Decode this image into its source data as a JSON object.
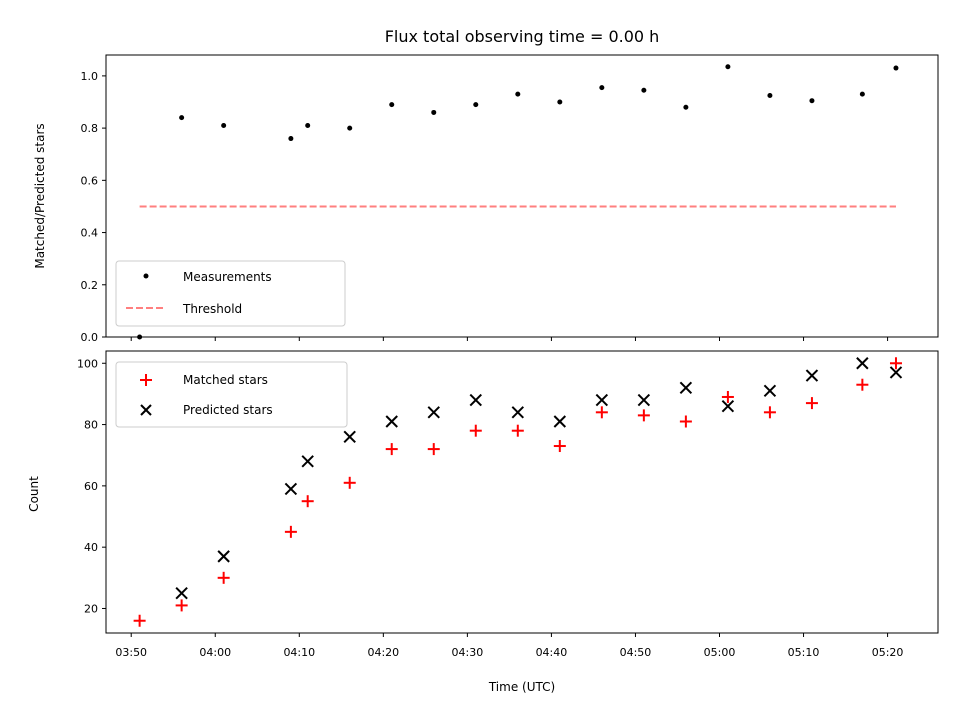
{
  "chart_data": [
    {
      "type": "scatter",
      "title": "Flux total observing time = 0.00 h",
      "xlabel": "",
      "ylabel": "Matched/Predicted stars",
      "ylim": [
        0,
        1.08
      ],
      "yticks": [
        "0.0",
        "0.2",
        "0.4",
        "0.6",
        "0.8",
        "1.0"
      ],
      "xlim": [
        "03:47",
        "05:26"
      ],
      "legend_position": "lower-left",
      "grid": false,
      "series": [
        {
          "name": "Measurements",
          "marker": "dot",
          "color": "#000000",
          "points": [
            [
              "03:51",
              0.0
            ],
            [
              "03:56",
              0.84
            ],
            [
              "04:01",
              0.81
            ],
            [
              "04:09",
              0.76
            ],
            [
              "04:11",
              0.81
            ],
            [
              "04:16",
              0.8
            ],
            [
              "04:21",
              0.89
            ],
            [
              "04:26",
              0.86
            ],
            [
              "04:31",
              0.89
            ],
            [
              "04:36",
              0.93
            ],
            [
              "04:41",
              0.9
            ],
            [
              "04:46",
              0.955
            ],
            [
              "04:51",
              0.945
            ],
            [
              "04:56",
              0.88
            ],
            [
              "05:01",
              1.035
            ],
            [
              "05:06",
              0.925
            ],
            [
              "05:11",
              0.905
            ],
            [
              "05:17",
              0.93
            ],
            [
              "05:21",
              1.03
            ]
          ]
        },
        {
          "name": "Threshold",
          "marker": "dashed-line",
          "color": "#ff7f7f",
          "points": [
            [
              "03:51",
              0.5
            ],
            [
              "05:21",
              0.5
            ]
          ]
        }
      ]
    },
    {
      "type": "scatter",
      "title": "",
      "xlabel": "Time (UTC)",
      "ylabel": "Count",
      "ylim": [
        12,
        104
      ],
      "yticks": [
        "20",
        "40",
        "60",
        "80",
        "100"
      ],
      "xlim": [
        "03:47",
        "05:26"
      ],
      "xticks": [
        "03:50",
        "04:00",
        "04:10",
        "04:20",
        "04:30",
        "04:40",
        "04:50",
        "05:00",
        "05:10",
        "05:20"
      ],
      "legend_position": "upper-left",
      "grid": false,
      "series": [
        {
          "name": "Matched stars",
          "marker": "plus",
          "color": "#ff0000",
          "points": [
            [
              "03:51",
              16
            ],
            [
              "03:56",
              21
            ],
            [
              "04:01",
              30
            ],
            [
              "04:09",
              45
            ],
            [
              "04:11",
              55
            ],
            [
              "04:16",
              61
            ],
            [
              "04:21",
              72
            ],
            [
              "04:26",
              72
            ],
            [
              "04:31",
              78
            ],
            [
              "04:36",
              78
            ],
            [
              "04:41",
              73
            ],
            [
              "04:46",
              84
            ],
            [
              "04:51",
              83
            ],
            [
              "04:56",
              81
            ],
            [
              "05:01",
              89
            ],
            [
              "05:06",
              84
            ],
            [
              "05:11",
              87
            ],
            [
              "05:17",
              93
            ],
            [
              "05:21",
              100
            ]
          ]
        },
        {
          "name": "Predicted stars",
          "marker": "x",
          "color": "#000000",
          "points": [
            [
              "03:56",
              25
            ],
            [
              "04:01",
              37
            ],
            [
              "04:09",
              59
            ],
            [
              "04:11",
              68
            ],
            [
              "04:16",
              76
            ],
            [
              "04:21",
              81
            ],
            [
              "04:26",
              84
            ],
            [
              "04:31",
              88
            ],
            [
              "04:36",
              84
            ],
            [
              "04:41",
              81
            ],
            [
              "04:46",
              88
            ],
            [
              "04:51",
              88
            ],
            [
              "04:56",
              92
            ],
            [
              "05:01",
              86
            ],
            [
              "05:06",
              91
            ],
            [
              "05:11",
              96
            ],
            [
              "05:17",
              100
            ],
            [
              "05:21",
              97
            ]
          ]
        }
      ]
    }
  ]
}
